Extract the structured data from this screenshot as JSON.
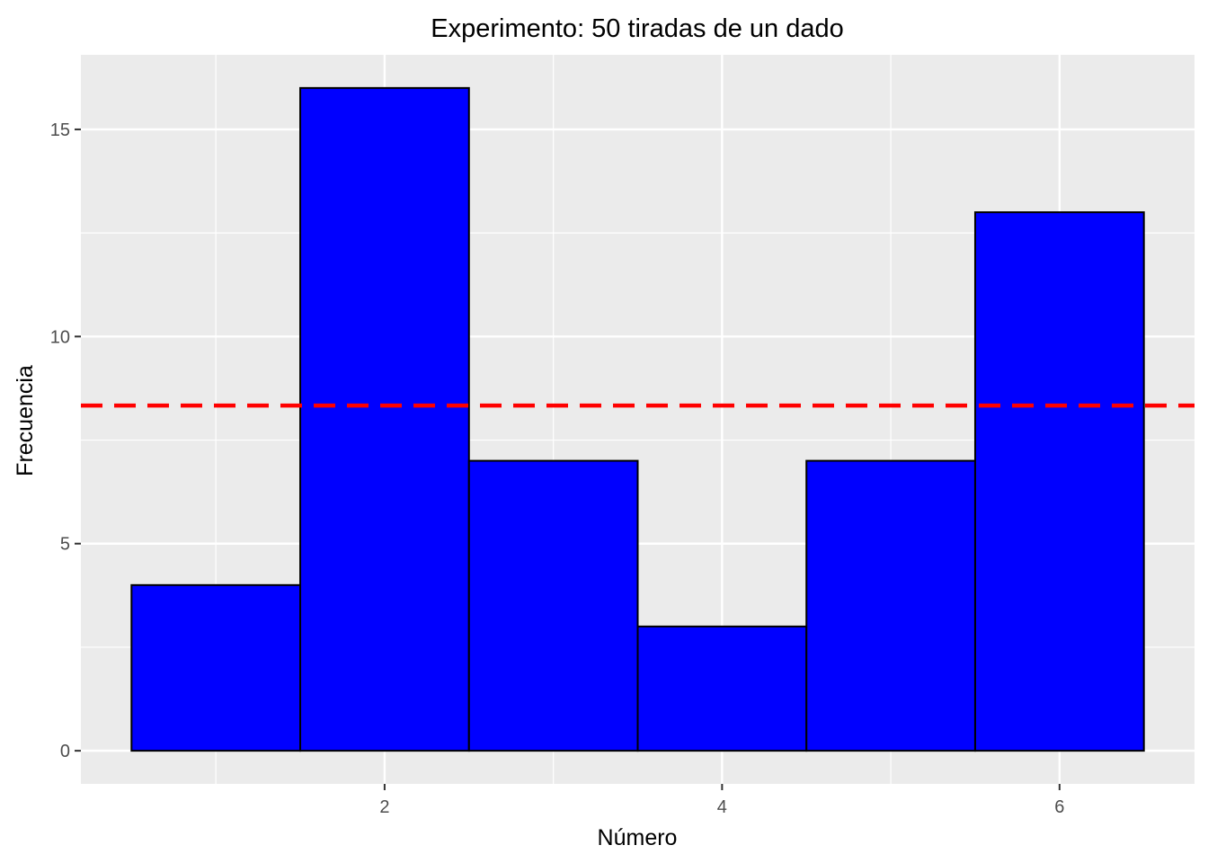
{
  "chart_data": {
    "type": "bar",
    "title": "Experimento: 50 tiradas de un dado",
    "xlabel": "Número",
    "ylabel": "Frecuencia",
    "x": [
      1,
      2,
      3,
      4,
      5,
      6
    ],
    "values": [
      4,
      16,
      7,
      3,
      7,
      13
    ],
    "bin_width": 1,
    "xlim": [
      0.2,
      6.8
    ],
    "ylim": [
      -0.8,
      16.8
    ],
    "x_ticks": [
      2,
      4,
      6
    ],
    "y_ticks": [
      0,
      5,
      10,
      15
    ],
    "reference_line": {
      "y": 8.333,
      "style": "dashed",
      "color": "#ff0000"
    },
    "grid": true,
    "colors": {
      "bar_fill": "#0000ff",
      "bar_stroke": "#000000",
      "panel_background": "#ebebeb",
      "grid": "#ffffff"
    }
  }
}
